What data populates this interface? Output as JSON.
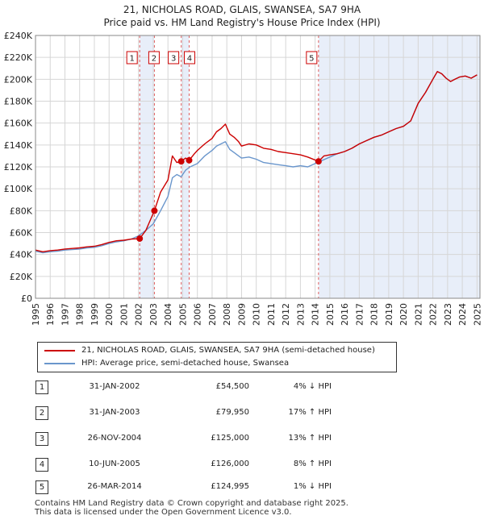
{
  "chart_data": {
    "type": "line",
    "title": "21, NICHOLAS ROAD, GLAIS, SWANSEA, SA7 9HA",
    "subtitle": "Price paid vs. HM Land Registry's House Price Index (HPI)",
    "xlabel": "",
    "ylabel": "",
    "xlim": [
      1995,
      2025.2
    ],
    "ylim": [
      0,
      240000
    ],
    "yticks": [
      0,
      20000,
      40000,
      60000,
      80000,
      100000,
      120000,
      140000,
      160000,
      180000,
      200000,
      220000,
      240000
    ],
    "ytick_labels": [
      "£0",
      "£20K",
      "£40K",
      "£60K",
      "£80K",
      "£100K",
      "£120K",
      "£140K",
      "£160K",
      "£180K",
      "£200K",
      "£220K",
      "£240K"
    ],
    "xticks": [
      1995,
      1996,
      1997,
      1998,
      1999,
      2000,
      2001,
      2002,
      2003,
      2004,
      2005,
      2006,
      2007,
      2008,
      2009,
      2010,
      2011,
      2012,
      2013,
      2014,
      2015,
      2016,
      2017,
      2018,
      2019,
      2020,
      2021,
      2022,
      2023,
      2024,
      2025
    ],
    "xtick_labels": [
      "1995",
      "1996",
      "1997",
      "1998",
      "1999",
      "2000",
      "2001",
      "2002",
      "2003",
      "2004",
      "2005",
      "2006",
      "2007",
      "2008",
      "2009",
      "2010",
      "2011",
      "2012",
      "2013",
      "2014",
      "2015",
      "2016",
      "2017",
      "2018",
      "2019",
      "2020",
      "2021",
      "2022",
      "2023",
      "2024",
      "2025"
    ],
    "grid": true,
    "shaded_periods": [
      {
        "from": 2002.08,
        "to": 2003.08
      },
      {
        "from": 2004.9,
        "to": 2005.44
      },
      {
        "from": 2014.23,
        "to": 2025.2
      }
    ],
    "sale_markers": [
      {
        "label": "1",
        "x": 2002.08,
        "y": 54500
      },
      {
        "label": "2",
        "x": 2003.08,
        "y": 79950
      },
      {
        "label": "3",
        "x": 2004.9,
        "y": 125000
      },
      {
        "label": "4",
        "x": 2005.44,
        "y": 126000
      },
      {
        "label": "5",
        "x": 2014.23,
        "y": 124995
      }
    ],
    "series": [
      {
        "name": "21, NICHOLAS ROAD, GLAIS, SWANSEA, SA7 9HA (semi-detached house)",
        "color": "#cc0000",
        "x": [
          1995,
          1995.5,
          1996,
          1996.5,
          1997,
          1997.5,
          1998,
          1998.5,
          1999,
          1999.5,
          2000,
          2000.5,
          2001,
          2001.5,
          2002.08,
          2002.5,
          2003.08,
          2003.5,
          2004,
          2004.3,
          2004.6,
          2004.9,
          2005.2,
          2005.44,
          2005.8,
          2006,
          2006.5,
          2007,
          2007.3,
          2007.6,
          2007.9,
          2008.2,
          2008.5,
          2008.8,
          2009,
          2009.5,
          2010,
          2010.5,
          2011,
          2011.5,
          2012,
          2012.5,
          2013,
          2013.5,
          2014.23,
          2014.6,
          2015,
          2015.5,
          2016,
          2016.5,
          2017,
          2017.5,
          2018,
          2018.5,
          2019,
          2019.5,
          2020,
          2020.5,
          2021,
          2021.5,
          2022,
          2022.3,
          2022.6,
          2022.9,
          2023.2,
          2023.5,
          2023.8,
          2024.2,
          2024.6,
          2025
        ],
        "values": [
          44000,
          42500,
          43500,
          44000,
          45000,
          45500,
          46000,
          47000,
          47500,
          49000,
          51000,
          52500,
          53000,
          54000,
          54500,
          62000,
          79950,
          97000,
          108000,
          130000,
          124000,
          125000,
          128000,
          126000,
          132000,
          135000,
          141000,
          146000,
          152000,
          155000,
          159000,
          150000,
          147000,
          143000,
          139000,
          141000,
          140000,
          137000,
          136000,
          134000,
          133000,
          132000,
          131000,
          129000,
          124995,
          130000,
          131000,
          132000,
          134000,
          137000,
          141000,
          144000,
          147000,
          149000,
          152000,
          155000,
          157000,
          162000,
          178000,
          188000,
          200000,
          207000,
          205000,
          201000,
          198000,
          200000,
          202000,
          203000,
          201000,
          204000
        ]
      },
      {
        "name": "HPI: Average price, semi-detached house, Swansea",
        "color": "#6a96cc",
        "x": [
          1995,
          1995.5,
          1996,
          1996.5,
          1997,
          1997.5,
          1998,
          1998.5,
          1999,
          1999.5,
          2000,
          2000.5,
          2001,
          2001.5,
          2002,
          2002.5,
          2003,
          2003.5,
          2004,
          2004.3,
          2004.6,
          2004.9,
          2005.2,
          2005.5,
          2006,
          2006.5,
          2007,
          2007.3,
          2007.6,
          2007.9,
          2008.2,
          2008.5,
          2008.8,
          2009,
          2009.5,
          2010,
          2010.5,
          2011,
          2011.5,
          2012,
          2012.5,
          2013,
          2013.5,
          2014,
          2014.5,
          2015,
          2015.5,
          2016,
          2016.5,
          2017,
          2017.5,
          2018,
          2018.5,
          2019,
          2019.5,
          2020,
          2020.5,
          2021,
          2021.5,
          2022,
          2022.3,
          2022.6,
          2022.9,
          2023.2,
          2023.5,
          2023.8,
          2024.2,
          2024.6,
          2025
        ],
        "values": [
          43000,
          41500,
          42500,
          43000,
          44000,
          44500,
          45000,
          46000,
          46500,
          48000,
          50000,
          51500,
          52500,
          54000,
          57000,
          62000,
          68000,
          80000,
          93000,
          110000,
          113000,
          111000,
          117000,
          120000,
          123000,
          130000,
          135000,
          139000,
          141000,
          143000,
          136000,
          133000,
          130000,
          128000,
          129000,
          127000,
          124000,
          123000,
          122000,
          121000,
          120000,
          121000,
          120000,
          123000,
          126000,
          129000,
          132000,
          134000,
          137000,
          141000,
          144000,
          147000,
          149000,
          152000,
          155000,
          157000,
          162000,
          178000,
          188000,
          200000,
          207000,
          205000,
          201000,
          198000,
          200000,
          202000,
          203000,
          201000,
          204000
        ]
      }
    ]
  },
  "legend": {
    "items": [
      {
        "label": "21, NICHOLAS ROAD, GLAIS, SWANSEA, SA7 9HA (semi-detached house)",
        "color": "#cc0000"
      },
      {
        "label": "HPI: Average price, semi-detached house, Swansea",
        "color": "#6a96cc"
      }
    ]
  },
  "sales": [
    {
      "num": "1",
      "date": "31-JAN-2002",
      "price": "£54,500",
      "hpi": "4% ↓ HPI"
    },
    {
      "num": "2",
      "date": "31-JAN-2003",
      "price": "£79,950",
      "hpi": "17% ↑ HPI"
    },
    {
      "num": "3",
      "date": "26-NOV-2004",
      "price": "£125,000",
      "hpi": "13% ↑ HPI"
    },
    {
      "num": "4",
      "date": "10-JUN-2005",
      "price": "£126,000",
      "hpi": "8% ↑ HPI"
    },
    {
      "num": "5",
      "date": "26-MAR-2014",
      "price": "£124,995",
      "hpi": "1% ↓ HPI"
    }
  ],
  "footer": {
    "line1": "Contains HM Land Registry data © Crown copyright and database right 2025.",
    "line2": "This data is licensed under the Open Government Licence v3.0."
  }
}
